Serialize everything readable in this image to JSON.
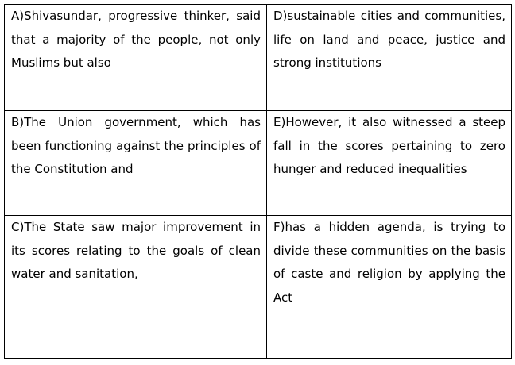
{
  "rows": [
    {
      "left": "A)Shivasundar, progressive thinker, said that a majority of the people, not only Muslims but also",
      "right": "D)sustainable cities and communities, life on land and peace, justice and strong institutions"
    },
    {
      "left": "B)The Union government, which has been functioning against the principles of the Constitution and",
      "right": "E)However, it also witnessed a steep fall in the scores pertaining to zero hunger and reduced inequalities"
    },
    {
      "left": "C)The State saw major improvement in its scores relating to the goals of clean water and sanitation,",
      "right": "F)has a hidden agenda, is trying to divide these communities on the basis of caste and religion by applying the Act"
    }
  ]
}
